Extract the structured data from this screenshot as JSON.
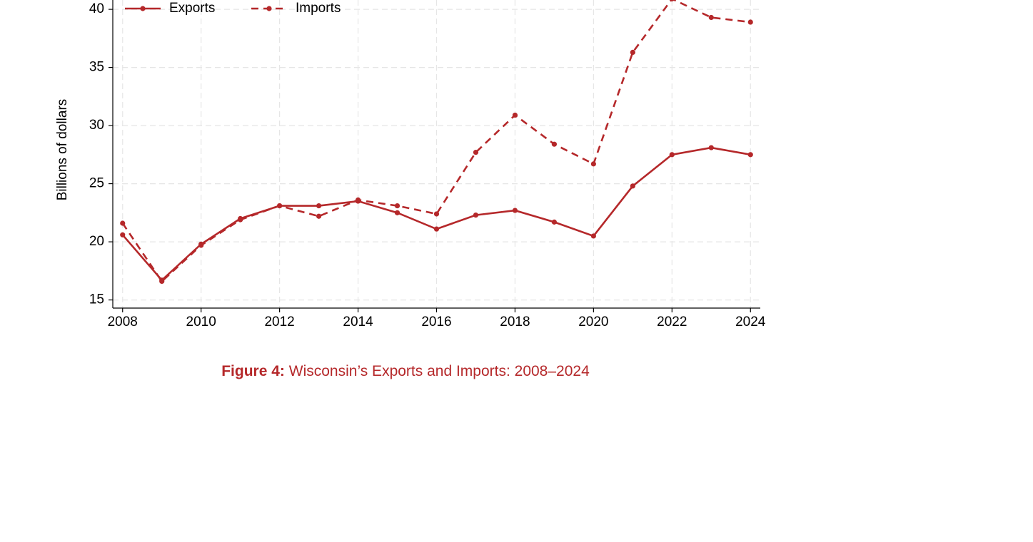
{
  "chart_data": {
    "type": "line",
    "y_label": "Billions of dollars",
    "figure_label": "Figure 4:",
    "caption": "Wisconsin’s Exports and Imports: 2008–2024",
    "x": [
      2008,
      2009,
      2010,
      2011,
      2012,
      2013,
      2014,
      2015,
      2016,
      2017,
      2018,
      2019,
      2020,
      2021,
      2022,
      2023,
      2024
    ],
    "series": [
      {
        "name": "Exports",
        "color": "#b5282a",
        "linestyle": "solid",
        "values": [
          20.6,
          16.7,
          19.8,
          22.0,
          23.1,
          23.1,
          23.5,
          22.5,
          21.1,
          22.3,
          22.7,
          21.7,
          20.5,
          24.8,
          27.5,
          28.1,
          27.5
        ]
      },
      {
        "name": "Imports",
        "color": "#b5282a",
        "linestyle": "dashed",
        "values": [
          21.6,
          16.6,
          19.7,
          21.9,
          23.1,
          22.2,
          23.6,
          23.1,
          22.4,
          27.7,
          30.9,
          28.4,
          26.7,
          36.3,
          40.9,
          39.3,
          38.9
        ]
      }
    ],
    "xlim": [
      2007.75,
      2024.25
    ],
    "ylim": [
      14.3,
      41.0
    ],
    "xticks": [
      2008,
      2010,
      2012,
      2014,
      2016,
      2018,
      2020,
      2022,
      2024
    ],
    "yticks": [
      15,
      20,
      25,
      30,
      35,
      40
    ],
    "grid": true,
    "legend": "top-left"
  }
}
